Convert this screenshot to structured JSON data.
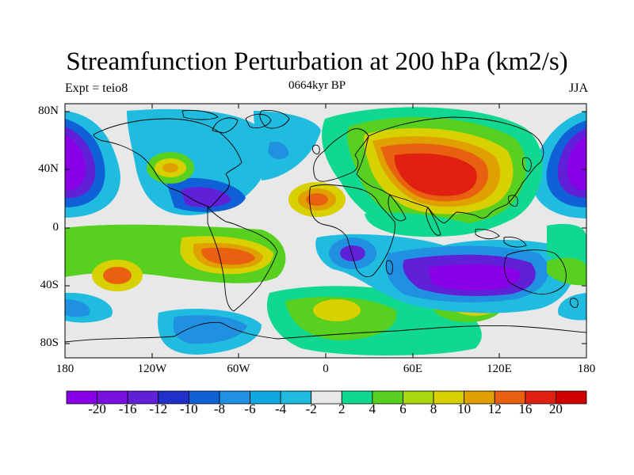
{
  "header": {
    "title": "Streamfunction Perturbation at 200 hPa (km2/s)",
    "subtitle": "0664kyr BP",
    "left_string": "Expt = teio8",
    "right_string": "JJA"
  },
  "axes": {
    "lon_labels": [
      "180",
      "120W",
      "60W",
      "0",
      "60E",
      "120E",
      "180"
    ],
    "lat_labels": [
      "80N",
      "40N",
      "0",
      "40S",
      "80S"
    ]
  },
  "colorbar": {
    "labels": [
      "-20",
      "-16",
      "-12",
      "-10",
      "-8",
      "-6",
      "-4",
      "-2",
      "2",
      "4",
      "6",
      "8",
      "10",
      "12",
      "16",
      "20"
    ],
    "colors": [
      "#8a00e6",
      "#7a10e0",
      "#6020d8",
      "#2030c8",
      "#1060d8",
      "#2090e0",
      "#10a8e0",
      "#20bce0",
      "#e8e8e8",
      "#10d890",
      "#58d020",
      "#a8d810",
      "#d8d000",
      "#e0a000",
      "#e86010",
      "#e02010",
      "#d00000"
    ]
  },
  "map": {
    "background": "#e8e8e8",
    "projection": "cylindrical-equidistant"
  }
}
